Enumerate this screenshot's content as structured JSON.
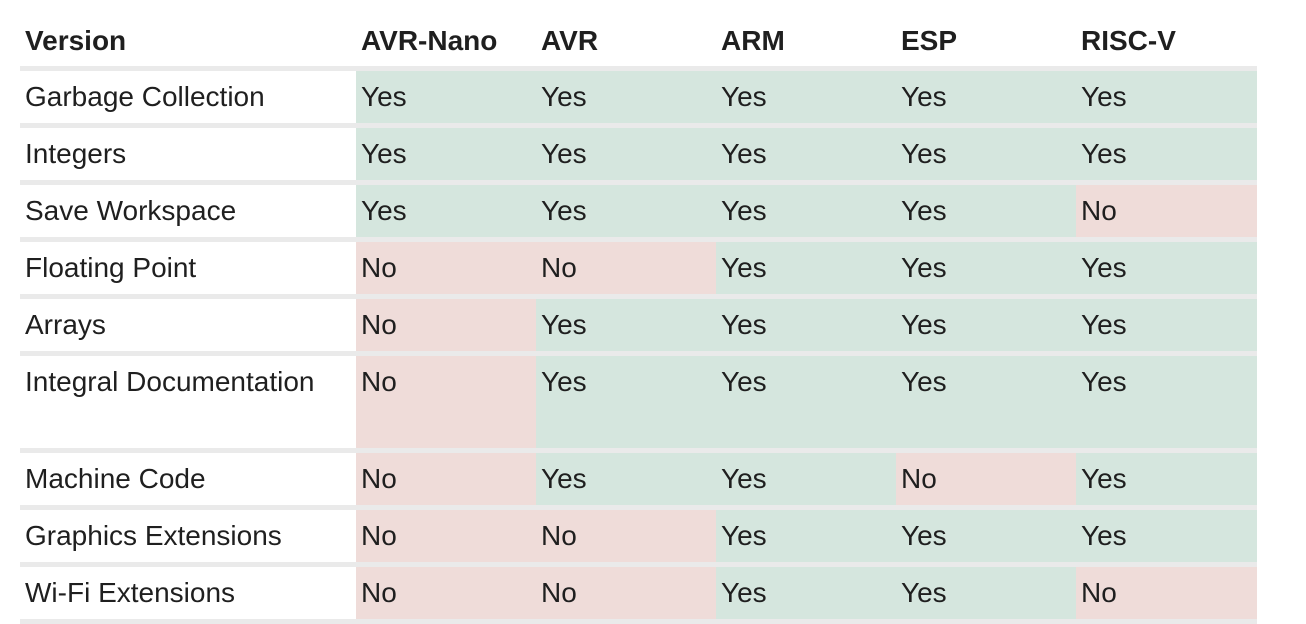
{
  "table": {
    "headers": [
      "Version",
      "AVR-Nano",
      "AVR",
      "ARM",
      "ESP",
      "RISC-V"
    ],
    "rows": [
      {
        "feature": "Garbage Collection",
        "values": [
          "Yes",
          "Yes",
          "Yes",
          "Yes",
          "Yes"
        ]
      },
      {
        "feature": "Integers",
        "values": [
          "Yes",
          "Yes",
          "Yes",
          "Yes",
          "Yes"
        ]
      },
      {
        "feature": "Save Workspace",
        "values": [
          "Yes",
          "Yes",
          "Yes",
          "Yes",
          "No"
        ]
      },
      {
        "feature": "Floating Point",
        "values": [
          "No",
          "No",
          "Yes",
          "Yes",
          "Yes"
        ]
      },
      {
        "feature": "Arrays",
        "values": [
          "No",
          "Yes",
          "Yes",
          "Yes",
          "Yes"
        ]
      },
      {
        "feature": "Integral Documentation",
        "values": [
          "No",
          "Yes",
          "Yes",
          "Yes",
          "Yes"
        ]
      },
      {
        "feature": "Machine Code",
        "values": [
          "No",
          "Yes",
          "Yes",
          "No",
          "Yes"
        ]
      },
      {
        "feature": "Graphics Extensions",
        "values": [
          "No",
          "No",
          "Yes",
          "Yes",
          "Yes"
        ]
      },
      {
        "feature": "Wi-Fi Extensions",
        "values": [
          "No",
          "No",
          "Yes",
          "Yes",
          "No"
        ]
      }
    ]
  },
  "colors": {
    "yes_cell": "#d5e6de",
    "no_cell": "#efdcd9",
    "row_separator": "#eaeaea"
  }
}
